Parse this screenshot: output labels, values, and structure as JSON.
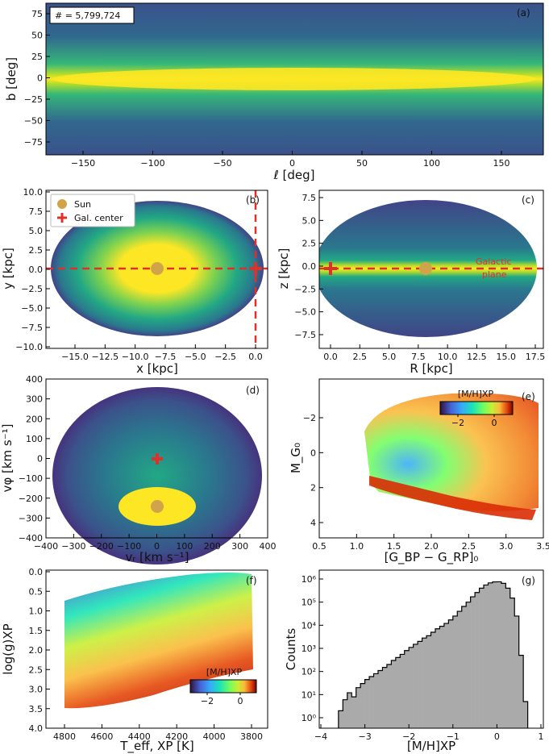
{
  "figure": {
    "panel_a": {
      "label": "(a)",
      "count_text": "# = 5,799,724",
      "xlabel": "ℓ [deg]",
      "ylabel": "b [deg]",
      "xticks": [
        "−150",
        "−100",
        "−50",
        "0",
        "50",
        "100",
        "150"
      ],
      "yticks": [
        "75",
        "50",
        "25",
        "0",
        "−25",
        "−50",
        "−75"
      ]
    },
    "panel_b": {
      "label": "(b)",
      "xlabel": "x [kpc]",
      "ylabel": "y [kpc]",
      "xticks": [
        "−15.0",
        "−12.5",
        "−10.0",
        "−7.5",
        "−5.0",
        "−2.5",
        "0.0"
      ],
      "yticks": [
        "10.0",
        "7.5",
        "5.0",
        "2.5",
        "0.0",
        "−2.5",
        "−5.0",
        "−7.5",
        "−10.0"
      ],
      "legend": [
        "Sun",
        "Gal. center"
      ]
    },
    "panel_c": {
      "label": "(c)",
      "xlabel": "R [kpc]",
      "ylabel": "z [kpc]",
      "xticks": [
        "0.0",
        "2.5",
        "5.0",
        "7.5",
        "10.0",
        "12.5",
        "15.0",
        "17.5"
      ],
      "yticks": [
        "7.5",
        "5.0",
        "2.5",
        "0.0",
        "−2.5",
        "−5.0",
        "−7.5"
      ],
      "annotation_line1": "Galactic",
      "annotation_line2": "plane"
    },
    "panel_d": {
      "label": "(d)",
      "xlabel": "vᵣ [km s⁻¹]",
      "ylabel": "vφ [km s⁻¹]",
      "xticks": [
        "−400",
        "−300",
        "−200",
        "−100",
        "0",
        "100",
        "200",
        "300",
        "400"
      ],
      "yticks": [
        "400",
        "300",
        "200",
        "100",
        "0",
        "−100",
        "−200",
        "−300",
        "−400"
      ]
    },
    "panel_e": {
      "label": "(e)",
      "xlabel": "[G_BP − G_RP]₀",
      "ylabel": "M_G₀",
      "xticks": [
        "0.5",
        "1.0",
        "1.5",
        "2.0",
        "2.5",
        "3.0",
        "3.5"
      ],
      "yticks": [
        "−2",
        "0",
        "2",
        "4"
      ],
      "cbar_label": "[M/H]XP",
      "cbar_ticks": [
        "−2",
        "0"
      ]
    },
    "panel_f": {
      "label": "(f)",
      "xlabel": "T_eff, XP [K]",
      "ylabel": "log(g)XP",
      "xticks": [
        "4800",
        "4600",
        "4400",
        "4200",
        "4000",
        "3800"
      ],
      "yticks": [
        "0.0",
        "0.5",
        "1.0",
        "1.5",
        "2.0",
        "2.5",
        "3.0",
        "3.5",
        "4.0"
      ],
      "cbar_label": "[M/H]XP",
      "cbar_ticks": [
        "−2",
        "0"
      ]
    },
    "panel_g": {
      "label": "(g)",
      "xlabel": "[M/H]XP",
      "ylabel": "Counts",
      "xticks": [
        "−4",
        "−3",
        "−2",
        "−1",
        "0",
        "1"
      ],
      "yticks": [
        "10⁶",
        "10⁵",
        "10⁴",
        "10³",
        "10²",
        "10¹",
        "10⁰"
      ]
    }
  },
  "chart_data": [
    {
      "type": "heatmap",
      "title": "(a)",
      "xlabel": "ℓ [deg]",
      "ylabel": "b [deg]",
      "xlim": [
        -180,
        180
      ],
      "ylim": [
        -90,
        90
      ],
      "annotation": "# = 5,799,724"
    },
    {
      "type": "heatmap",
      "title": "(b)",
      "xlabel": "x [kpc]",
      "ylabel": "y [kpc]",
      "xlim": [
        -17,
        1
      ],
      "ylim": [
        -10,
        10
      ],
      "markers": [
        {
          "name": "Sun",
          "x": -8.2,
          "y": 0
        },
        {
          "name": "Gal. center",
          "x": 0,
          "y": 0
        }
      ]
    },
    {
      "type": "heatmap",
      "title": "(c)",
      "xlabel": "R [kpc]",
      "ylabel": "z [kpc]",
      "xlim": [
        -1,
        17.5
      ],
      "ylim": [
        -8.5,
        8.5
      ],
      "markers": [
        {
          "name": "Sun",
          "x": 8.2,
          "y": 0
        },
        {
          "name": "Gal. center",
          "x": 0,
          "y": 0
        }
      ]
    },
    {
      "type": "heatmap",
      "title": "(d)",
      "xlabel": "vr [km s-1]",
      "ylabel": "vphi [km s-1]",
      "xlim": [
        -400,
        400
      ],
      "ylim": [
        -400,
        400
      ],
      "markers": [
        {
          "name": "Sun",
          "x": 0,
          "y": -245
        },
        {
          "name": "Gal. center",
          "x": 0,
          "y": 0
        }
      ]
    },
    {
      "type": "scatter",
      "title": "(e)",
      "xlabel": "[GBP-GRP]0",
      "ylabel": "MG0",
      "xlim": [
        0.5,
        3.5
      ],
      "ylim": [
        5,
        -3.5
      ],
      "color": "[M/H]XP",
      "clim": [
        -3,
        1
      ]
    },
    {
      "type": "scatter",
      "title": "(f)",
      "xlabel": "Teff,XP [K]",
      "ylabel": "log(g)XP",
      "xlim": [
        4900,
        3750
      ],
      "ylim": [
        4,
        0
      ],
      "color": "[M/H]XP",
      "clim": [
        -3,
        1
      ]
    },
    {
      "type": "bar",
      "title": "(g)",
      "xlabel": "[M/H]XP",
      "ylabel": "Counts",
      "xlim": [
        -4,
        1
      ],
      "yscale": "log",
      "ylim": [
        0.5,
        1500000
      ],
      "bin_width": 0.1,
      "bins_left": [
        -3.6,
        -3.5,
        -3.4,
        -3.3,
        -3.2,
        -3.1,
        -3.0,
        -2.9,
        -2.8,
        -2.7,
        -2.6,
        -2.5,
        -2.4,
        -2.3,
        -2.2,
        -2.1,
        -2.0,
        -1.9,
        -1.8,
        -1.7,
        -1.6,
        -1.5,
        -1.4,
        -1.3,
        -1.2,
        -1.1,
        -1.0,
        -0.9,
        -0.8,
        -0.7,
        -0.6,
        -0.5,
        -0.4,
        -0.3,
        -0.2,
        -0.1,
        0.0,
        0.1,
        0.2,
        0.3,
        0.4,
        0.5,
        0.6
      ],
      "counts": [
        2,
        6,
        12,
        8,
        20,
        30,
        45,
        60,
        80,
        110,
        150,
        200,
        300,
        400,
        550,
        800,
        1100,
        1500,
        2000,
        2800,
        3500,
        5000,
        7000,
        9000,
        12000,
        17000,
        25000,
        40000,
        65000,
        100000,
        170000,
        260000,
        400000,
        550000,
        680000,
        750000,
        760000,
        650000,
        400000,
        150000,
        25000,
        500,
        5
      ]
    }
  ]
}
